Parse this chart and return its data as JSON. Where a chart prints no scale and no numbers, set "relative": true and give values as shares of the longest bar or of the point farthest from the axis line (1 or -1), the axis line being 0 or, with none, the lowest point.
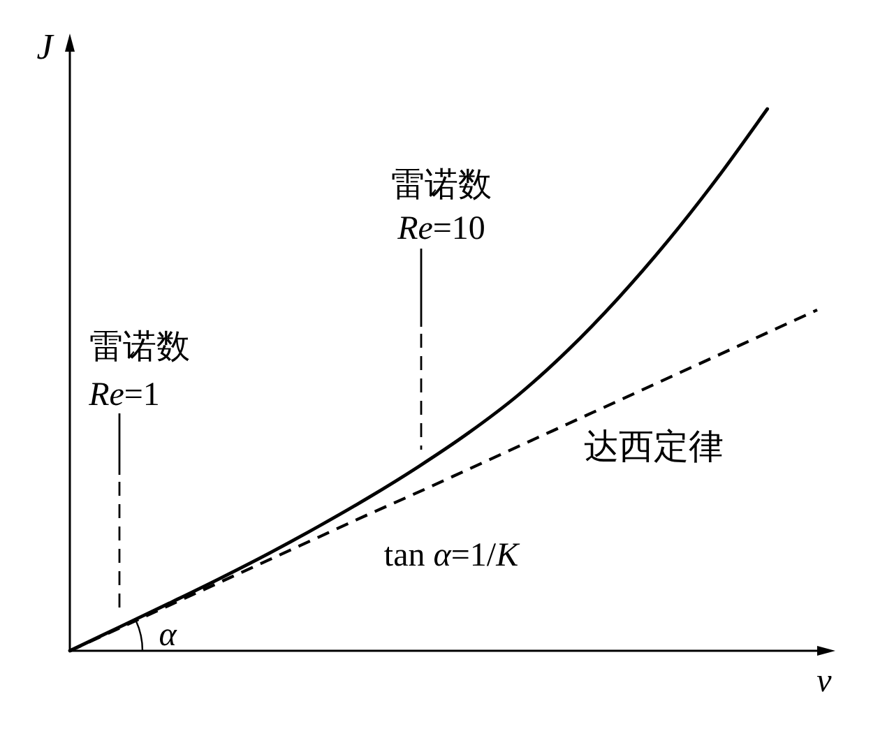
{
  "chart_data": {
    "type": "line",
    "relative": true,
    "xlabel": "v",
    "ylabel": "J",
    "categories": [
      null,
      null,
      null,
      null,
      null,
      null,
      null,
      null,
      null,
      null,
      null,
      null,
      null,
      null,
      null,
      null
    ],
    "series": [
      {
        "color": "#000000",
        "values": [
          0,
          0.044,
          0.088,
          0.133,
          0.18,
          0.23,
          0.283,
          0.34,
          0.402,
          0.472,
          0.555,
          0.65,
          0.756,
          0.873,
          1,
          null
        ]
      },
      {
        "name": "达西定律",
        "color": "#000000",
        "line_style": "dashed",
        "values": [
          0,
          0.042,
          0.084,
          0.126,
          0.168,
          0.21,
          0.252,
          0.293,
          0.335,
          0.377,
          0.419,
          0.461,
          0.503,
          0.545,
          0.587,
          0.629
        ]
      }
    ],
    "annotations": [
      "雷诺数",
      "*Re*=1",
      "雷诺数",
      "*Re*=10",
      "tan *α*=1/*K*",
      "α"
    ]
  }
}
